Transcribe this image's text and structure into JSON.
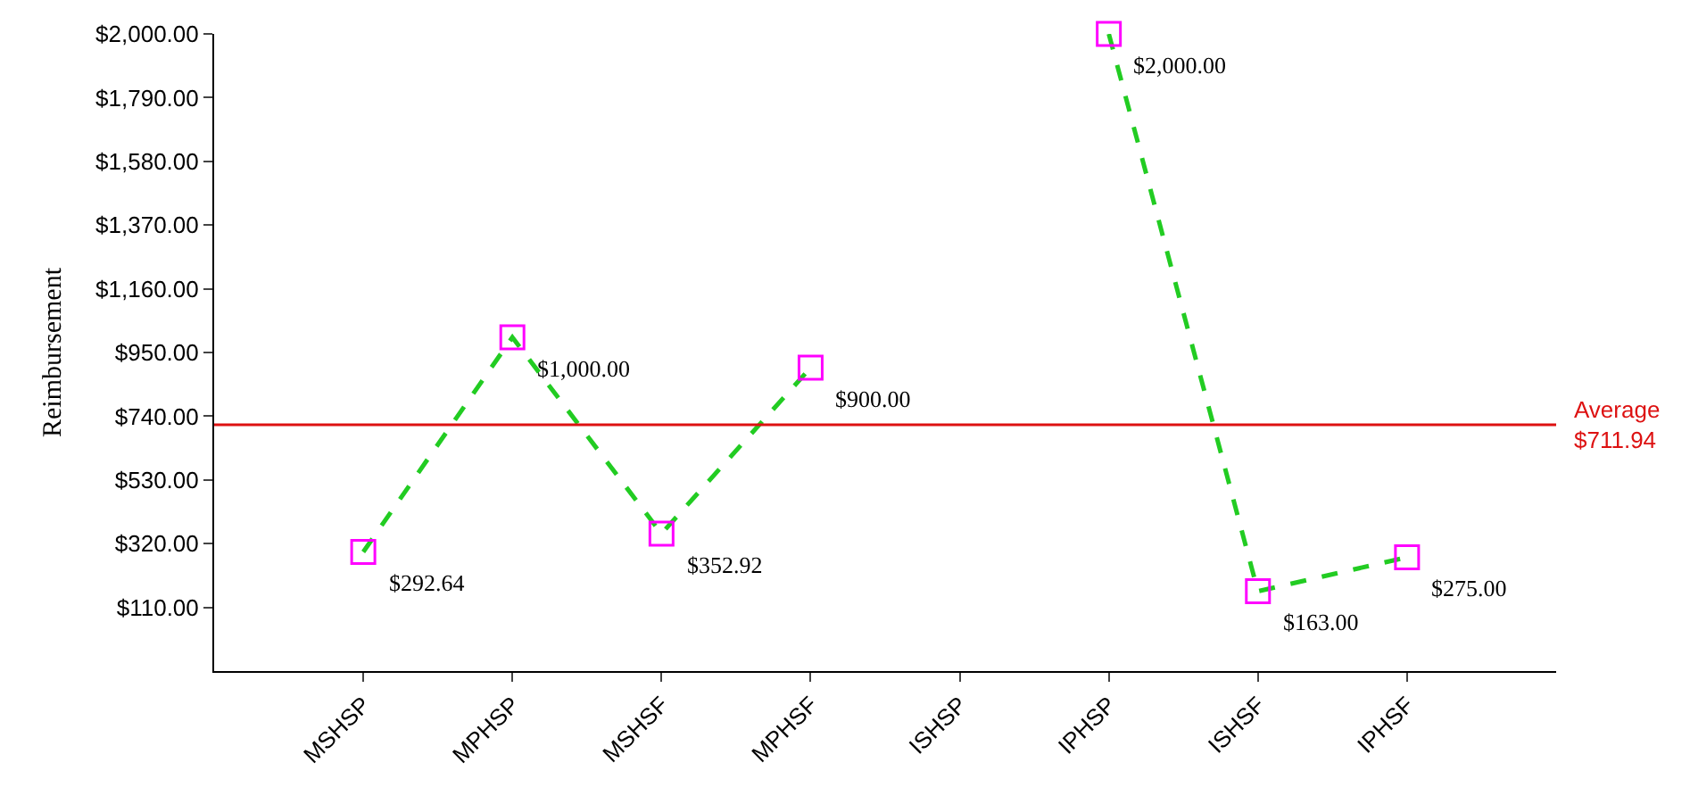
{
  "chart_data": {
    "type": "line",
    "ylabel": "Reimbursement",
    "categories": [
      "MSHSP",
      "MPHSP",
      "MSHSF",
      "MPHSF",
      "ISHSP",
      "IPHSP",
      "ISHSF",
      "IPHSF"
    ],
    "series": [
      {
        "color": "#22cc22",
        "values": [
          292.64,
          1000,
          352.92,
          900,
          null,
          2000,
          163,
          275
        ],
        "value_labels": [
          "$292.64",
          "$1,000.00",
          "$352.92",
          "$900.00",
          null,
          "$2,000.00",
          "$163.00",
          "$275.00"
        ],
        "colors": [
          "#ff00ff",
          "#ff00ff",
          "#ff00ff",
          "#ff00ff",
          "#ff00ff",
          "#ff00ff",
          "#ff00ff",
          "#ff00ff"
        ]
      }
    ],
    "ylim": [
      -100,
      2000
    ],
    "yticks": [
      {
        "value": 110,
        "label": "$110.00"
      },
      {
        "value": 320,
        "label": "$320.00"
      },
      {
        "value": 530,
        "label": "$530.00"
      },
      {
        "value": 740,
        "label": "$740.00"
      },
      {
        "value": 950,
        "label": "$950.00"
      },
      {
        "value": 1160,
        "label": "$1,160.00"
      },
      {
        "value": 1370,
        "label": "$1,370.00"
      },
      {
        "value": 1580,
        "label": "$1,580.00"
      },
      {
        "value": 1790,
        "label": "$1,790.00"
      },
      {
        "value": 2000,
        "label": "$2,000.00"
      }
    ],
    "ref_lines": [
      {
        "axis": "y",
        "value": 711.94,
        "label": "Average\n$711.94",
        "color": "#dd1111",
        "line_style": "solid"
      }
    ],
    "marker": "square",
    "line_style": "dashed",
    "legend": false
  }
}
